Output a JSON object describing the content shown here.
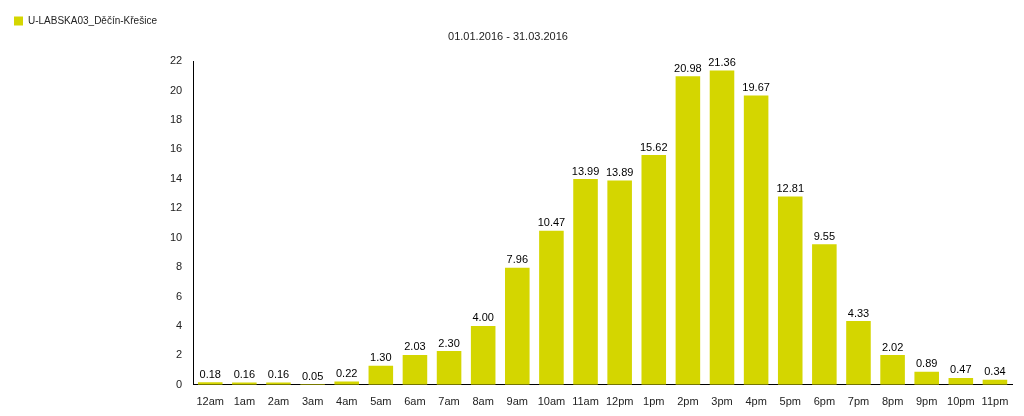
{
  "chart_data": {
    "type": "bar",
    "title": "01.01.2016 - 31.03.2016",
    "categories": [
      "12am",
      "1am",
      "2am",
      "3am",
      "4am",
      "5am",
      "6am",
      "7am",
      "8am",
      "9am",
      "10am",
      "11am",
      "12pm",
      "1pm",
      "2pm",
      "3pm",
      "4pm",
      "5pm",
      "6pm",
      "7pm",
      "8pm",
      "9pm",
      "10pm",
      "11pm"
    ],
    "series": [
      {
        "name": "U-LABSKA03_Děčín-Křešice",
        "color": "#d4d600",
        "values": [
          0.18,
          0.16,
          0.16,
          0.05,
          0.22,
          1.3,
          2.03,
          2.3,
          4.0,
          7.96,
          10.47,
          13.99,
          13.89,
          15.62,
          20.98,
          21.36,
          19.67,
          12.81,
          9.55,
          4.33,
          2.02,
          0.89,
          0.47,
          0.34
        ],
        "value_labels": [
          "0.18",
          "0.16",
          "0.16",
          "0.05",
          "0.22",
          "1.30",
          "2.03",
          "2.30",
          "4.00",
          "7.96",
          "10.47",
          "13.99",
          "13.89",
          "15.62",
          "20.98",
          "21.36",
          "19.67",
          "12.81",
          "9.55",
          "4.33",
          "2.02",
          "0.89",
          "0.47",
          "0.34"
        ]
      }
    ],
    "ylim": [
      0,
      22
    ],
    "yticks": [
      0,
      2,
      4,
      6,
      8,
      10,
      12,
      14,
      16,
      18,
      20,
      22
    ],
    "grid": false,
    "legend": "left",
    "data_labels": true
  }
}
